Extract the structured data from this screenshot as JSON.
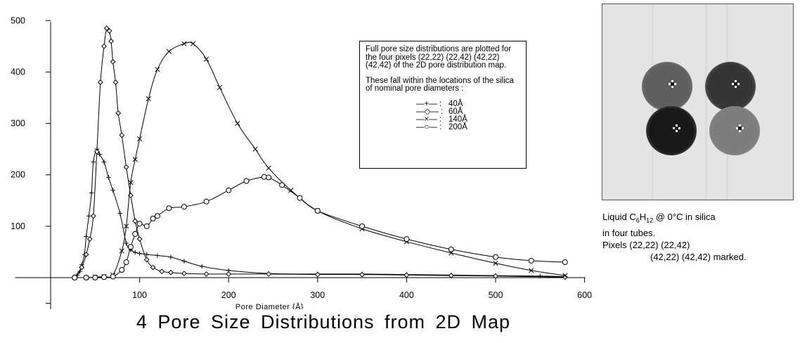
{
  "chart_data": {
    "type": "line",
    "title": "4 Pore Size Distributions from 2D Map",
    "xlabel": "Pore Diameter {Å}",
    "ylabel": "",
    "xlim": [
      -40,
      600
    ],
    "ylim": [
      -70,
      500
    ],
    "xticks": [
      100,
      200,
      300,
      400,
      500,
      600
    ],
    "yticks": [
      100,
      200,
      300,
      400,
      500
    ],
    "grid": false,
    "legend_position": "top-right",
    "legend_note": [
      "Full pore size distributions are plotted for the four pixels (22,22) (22,42) (42,22) (42,42) of the 2D pore distribution map.",
      "These fall within the locations of the silica of nominal pore diameters :"
    ],
    "series": [
      {
        "name": "40Å",
        "marker": "plus",
        "x": [
          27,
          30,
          33,
          35,
          38,
          40,
          43,
          46,
          48,
          52,
          55,
          60,
          65,
          70,
          78,
          85,
          90,
          95,
          100,
          108,
          120,
          135,
          150,
          170,
          200,
          245,
          300,
          350,
          400,
          450,
          500,
          550,
          578
        ],
        "y": [
          2,
          5,
          12,
          25,
          45,
          80,
          120,
          165,
          225,
          250,
          240,
          225,
          195,
          170,
          125,
          67,
          54,
          49,
          47,
          45,
          43,
          40,
          32,
          22,
          14,
          8,
          7,
          7,
          6,
          5,
          4,
          3,
          2
        ]
      },
      {
        "name": "60Å",
        "marker": "diamond",
        "x": [
          27,
          35,
          40,
          44,
          48,
          52,
          56,
          60,
          63,
          66,
          68,
          70,
          73,
          76,
          80,
          85,
          90,
          95,
          100,
          108,
          115,
          125,
          135,
          150,
          175,
          200,
          245,
          300,
          350,
          400,
          450,
          500,
          578
        ],
        "y": [
          1,
          20,
          45,
          75,
          120,
          245,
          380,
          450,
          485,
          480,
          460,
          420,
          380,
          320,
          277,
          215,
          160,
          110,
          75,
          35,
          20,
          12,
          10,
          8,
          7,
          7,
          7,
          6,
          6,
          5,
          4,
          3,
          1
        ]
      },
      {
        "name": "140Å",
        "marker": "cross",
        "x": [
          27,
          40,
          50,
          60,
          70,
          80,
          85,
          90,
          95,
          100,
          110,
          120,
          133,
          150,
          160,
          175,
          190,
          210,
          230,
          245,
          270,
          300,
          350,
          400,
          450,
          500,
          540,
          578
        ],
        "y": [
          0,
          0,
          1,
          2,
          5,
          52,
          100,
          185,
          230,
          270,
          348,
          405,
          440,
          455,
          455,
          425,
          370,
          300,
          250,
          213,
          170,
          130,
          95,
          70,
          48,
          28,
          14,
          4
        ]
      },
      {
        "name": "200Å",
        "marker": "circle",
        "x": [
          27,
          40,
          50,
          60,
          70,
          80,
          85,
          90,
          95,
          100,
          108,
          115,
          120,
          133,
          150,
          175,
          200,
          220,
          240,
          245,
          260,
          280,
          300,
          350,
          400,
          450,
          500,
          540,
          578
        ],
        "y": [
          0,
          0,
          0,
          1,
          2,
          15,
          30,
          60,
          85,
          105,
          100,
          115,
          120,
          135,
          138,
          148,
          170,
          188,
          196,
          195,
          180,
          155,
          130,
          100,
          75,
          55,
          40,
          33,
          30
        ]
      }
    ]
  },
  "image_panel": {
    "caption_line1_prefix": "Liquid C",
    "caption_sub1": "6",
    "caption_mid": "H",
    "caption_sub2": "12",
    "caption_line1_suffix": " @ 0°C in silica",
    "caption_line2": "in four tubes.",
    "caption_line3": "Pixels (22,22) (22,42)",
    "caption_line4": "(42,22) (42,42) marked.",
    "tube_colors": [
      "#5f5f5f",
      "#353535",
      "#181818",
      "#7d7d7d"
    ],
    "background_color": "#e4e4e4"
  }
}
